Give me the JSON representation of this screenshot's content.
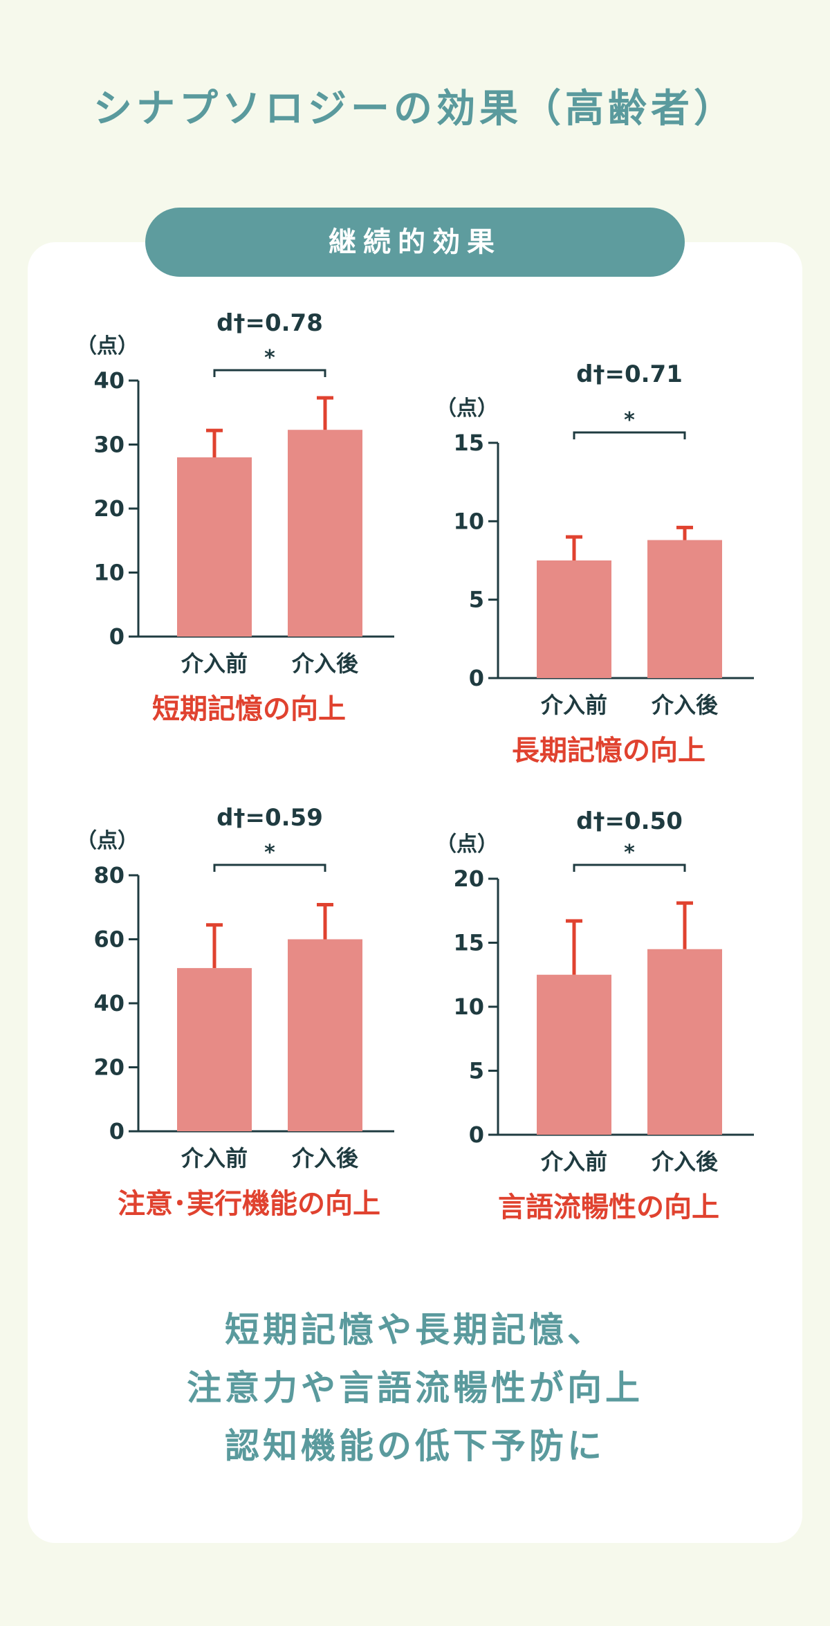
{
  "page_title": "シナプソロジーの効果（高齢者）",
  "section_label": "継続的効果",
  "colors": {
    "accent": "#5e9c9e",
    "bar": "#e78b86",
    "error_bar": "#e0422f",
    "title_red": "#e0422f",
    "axis": "#1f3b40"
  },
  "chart_data": [
    {
      "type": "bar",
      "title": "短期記憶の向上",
      "ylabel": "（点）",
      "categories": [
        "介入前",
        "介入後"
      ],
      "values": [
        28,
        32.3
      ],
      "errors": [
        4.2,
        5.0
      ],
      "ylim": [
        0,
        40
      ],
      "yticks": [
        "0",
        "10",
        "20",
        "30",
        "40"
      ],
      "effect_size": "d†=0.78",
      "significance": "*",
      "grid": false
    },
    {
      "type": "bar",
      "title": "長期記憶の向上",
      "ylabel": "（点）",
      "categories": [
        "介入前",
        "介入後"
      ],
      "values": [
        7.5,
        8.8
      ],
      "errors": [
        1.5,
        0.8
      ],
      "ylim": [
        0,
        15
      ],
      "yticks": [
        "0",
        "5",
        "10",
        "15"
      ],
      "effect_size": "d†=0.71",
      "significance": "*",
      "grid": false
    },
    {
      "type": "bar",
      "title": "注意･実行機能の向上",
      "ylabel": "（点）",
      "categories": [
        "介入前",
        "介入後"
      ],
      "values": [
        51,
        60
      ],
      "errors": [
        13.5,
        10.8
      ],
      "ylim": [
        0,
        80
      ],
      "yticks": [
        "0",
        "20",
        "40",
        "60",
        "80"
      ],
      "effect_size": "d†=0.59",
      "significance": "*",
      "grid": false
    },
    {
      "type": "bar",
      "title": "言語流暢性の向上",
      "ylabel": "（点）",
      "categories": [
        "介入前",
        "介入後"
      ],
      "values": [
        12.5,
        14.5
      ],
      "errors": [
        4.2,
        3.6
      ],
      "ylim": [
        0,
        20
      ],
      "yticks": [
        "0",
        "5",
        "10",
        "15",
        "20"
      ],
      "effect_size": "d†=0.50",
      "significance": "*",
      "grid": false
    }
  ],
  "summary_lines": [
    "短期記憶や長期記憶、",
    "注意力や言語流暢性が向上",
    "認知機能の低下予防に"
  ]
}
